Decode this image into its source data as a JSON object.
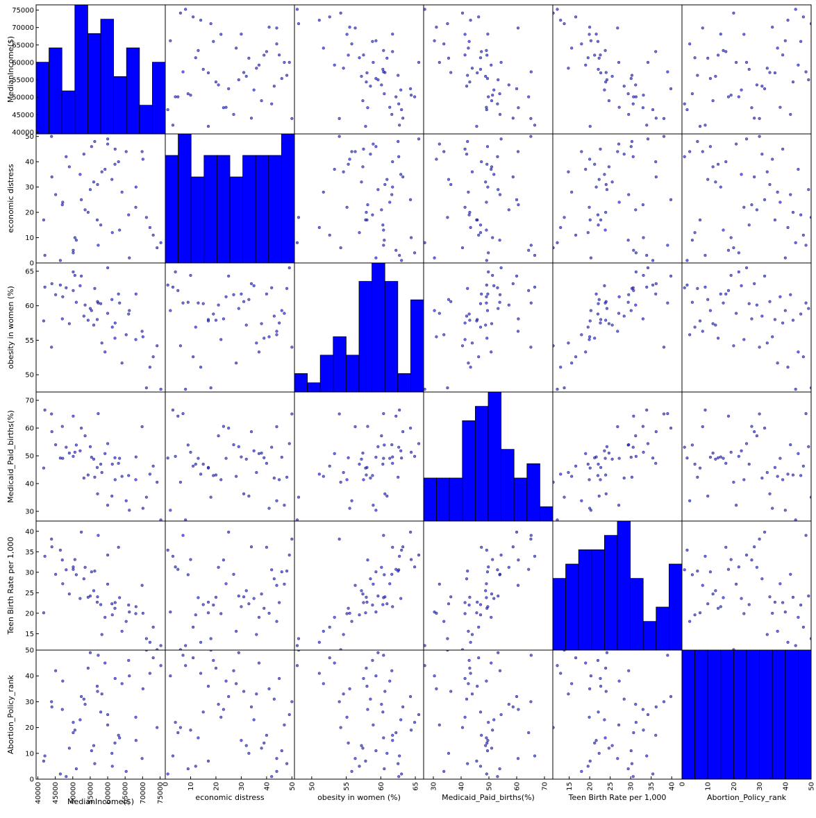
{
  "chart_data": {
    "type": "scatter-matrix",
    "variables": [
      {
        "name": "MedianIncome($)",
        "range": [
          39500,
          76500
        ],
        "ticks": [
          40000,
          45000,
          50000,
          55000,
          60000,
          65000,
          70000,
          75000
        ]
      },
      {
        "name": "economic distress",
        "range": [
          0,
          51
        ],
        "ticks": [
          0,
          10,
          20,
          30,
          40,
          50
        ]
      },
      {
        "name": "obesity in women (%)",
        "range": [
          47.5,
          66.2
        ],
        "ticks": [
          50,
          55,
          60,
          65
        ]
      },
      {
        "name": "Medicaid_Paid_births(%)",
        "range": [
          26.5,
          73
        ],
        "ticks": [
          30,
          40,
          50,
          60,
          70
        ]
      },
      {
        "name": "Teen Birth Rate per 1,000",
        "range": [
          11,
          42.5
        ],
        "ticks": [
          15,
          20,
          25,
          30,
          35,
          40
        ]
      },
      {
        "name": "Abortion_Policy_rank",
        "range": [
          0,
          50
        ],
        "ticks": [
          0,
          10,
          20,
          30,
          40,
          50
        ]
      }
    ],
    "histograms": [
      {
        "variable": "MedianIncome($)",
        "counts": [
          5,
          6,
          3,
          9,
          7,
          8,
          4,
          6,
          2,
          5
        ]
      },
      {
        "variable": "economic distress",
        "counts": [
          5,
          6,
          4,
          5,
          5,
          4,
          5,
          5,
          5,
          6
        ]
      },
      {
        "variable": "obesity in women (%)",
        "counts": [
          1,
          0.5,
          2,
          3,
          2,
          6,
          7,
          6,
          1,
          5
        ]
      },
      {
        "variable": "Medicaid_Paid_births(%)",
        "counts": [
          3,
          3,
          3,
          7,
          8,
          9,
          5,
          3,
          4,
          1
        ]
      },
      {
        "variable": "Teen Birth Rate per 1,000",
        "counts": [
          5,
          6,
          7,
          7,
          8,
          9,
          5,
          2,
          3,
          6
        ]
      },
      {
        "variable": "Abortion_Policy_rank",
        "counts": [
          5,
          5,
          5,
          5,
          5,
          5,
          5,
          5,
          5,
          5
        ]
      }
    ],
    "points": [
      [
        69862,
        44,
        56.3,
        60.5,
        26.8,
        8
      ],
      [
        43913,
        50,
        54.0,
        65.1,
        38.1,
        30
      ],
      [
        55014,
        29,
        59.6,
        53.3,
        24.2,
        49
      ],
      [
        50133,
        4,
        64.9,
        49.8,
        31.3,
        22
      ],
      [
        68109,
        30,
        61.7,
        49.6,
        21.6,
        15
      ],
      [
        62134,
        45,
        57.5,
        41.4,
        22.6,
        39
      ],
      [
        72104,
        14,
        51.1,
        43.4,
        12.9,
        41
      ],
      [
        61331,
        12,
        56.9,
        47.0,
        19.6,
        5
      ],
      [
        46442,
        1,
        63.0,
        49.2,
        35.4,
        2
      ],
      [
        50126,
        5,
        62.2,
        64.3,
        30.7,
        18
      ],
      [
        57006,
        17,
        58.0,
        45.8,
        22.7,
        36
      ],
      [
        55383,
        46,
        59.3,
        49.5,
        30.1,
        11
      ],
      [
        41668,
        17,
        57.8,
        45.6,
        20.1,
        7
      ],
      [
        60001,
        47,
        58.9,
        32.2,
        27.1,
        21
      ],
      [
        63103,
        40,
        61.7,
        47.3,
        36.1,
        17
      ],
      [
        52102,
        35,
        62.9,
        51.8,
        23.6,
        23
      ],
      [
        53542,
        21,
        60.1,
        57.2,
        31.2,
        29
      ],
      [
        75224,
        8,
        47.9,
        26.9,
        12.1,
        44
      ],
      [
        44016,
        34,
        63.2,
        58.7,
        36.2,
        28
      ],
      [
        52451,
        25,
        64.3,
        60.0,
        39.8,
        32
      ],
      [
        58339,
        36,
        54.6,
        44.0,
        14.8,
        33
      ],
      [
        48107,
        42,
        62.6,
        53.1,
        30.6,
        1
      ],
      [
        74149,
        6,
        54.2,
        40.5,
        11.1,
        20
      ],
      [
        59236,
        37,
        53.3,
        50.8,
        19.0,
        45
      ],
      [
        57287,
        7,
        60.4,
        65.2,
        39.0,
        48
      ],
      [
        65300,
        44,
        55.8,
        33.8,
        18.0,
        3
      ],
      [
        60013,
        49,
        65.5,
        54.4,
        34.2,
        25
      ],
      [
        47123,
        24,
        61.3,
        49.1,
        27.2,
        38
      ],
      [
        62081,
        39,
        55.3,
        49.3,
        21.2,
        14
      ],
      [
        53189,
        43,
        58.5,
        42.0,
        28.4,
        31
      ],
      [
        61220,
        33,
        60.9,
        35.5,
        22.3,
        10
      ],
      [
        51013,
        9,
        60.5,
        53.9,
        29.4,
        4
      ],
      [
        45094,
        27,
        61.6,
        54.0,
        29.5,
        42
      ],
      [
        54390,
        20,
        57.9,
        43.1,
        23.9,
        43
      ],
      [
        58016,
        15,
        60.3,
        47.0,
        22.1,
        26
      ],
      [
        66207,
        2,
        59.3,
        30.4,
        20.3,
        40
      ],
      [
        57102,
        31,
        60.6,
        36.3,
        24.0,
        34
      ],
      [
        49014,
        38,
        57.4,
        51.0,
        24.7,
        12
      ],
      [
        73048,
        11,
        52.6,
        46.3,
        16.6,
        47
      ],
      [
        63410,
        13,
        60.4,
        49.1,
        23.8,
        16
      ],
      [
        56290,
        48,
        62.5,
        42.3,
        30.3,
        6
      ],
      [
        50611,
        10,
        64.4,
        51.3,
        33.1,
        19
      ],
      [
        66003,
        19,
        58.8,
        42.9,
        22.0,
        46
      ],
      [
        47011,
        23,
        58.1,
        60.6,
        33.0,
        27
      ],
      [
        70104,
        41,
        55.5,
        31.1,
        20.0,
        35
      ],
      [
        42009,
        3,
        62.7,
        66.5,
        33.9,
        9
      ],
      [
        64102,
        28,
        51.7,
        42.6,
        15.6,
        37
      ],
      [
        68050,
        22,
        55.1,
        41.4,
        19.9,
        24
      ],
      [
        56007,
        32,
        57.2,
        48.8,
        25.5,
        13
      ],
      [
        71102,
        18,
        48.1,
        35.1,
        13.8,
        50
      ]
    ]
  }
}
